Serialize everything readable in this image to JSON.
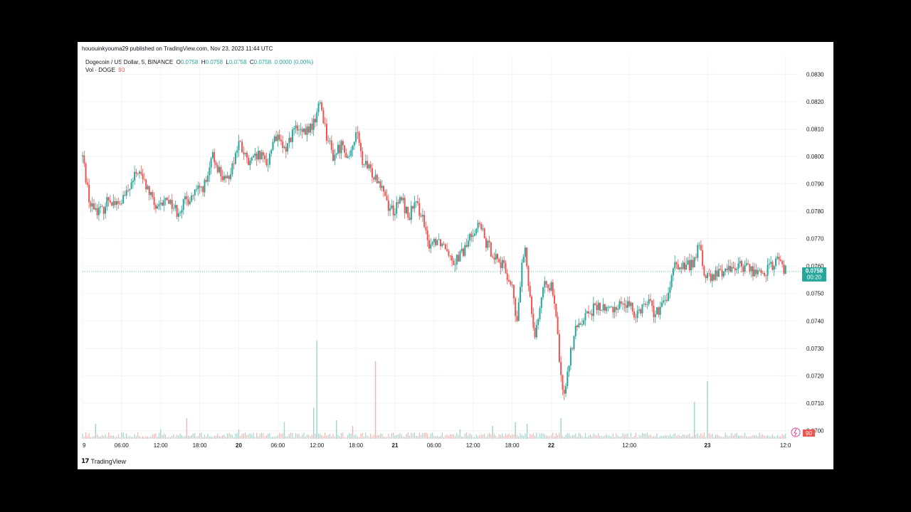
{
  "header": {
    "publish_line": "hououinkyouma29 published on TradingView.com, Nov 23, 2023 11:44 UTC"
  },
  "legend": {
    "symbol": "Dogecoin / US Dollar, 5, BINANCE",
    "o_label": "O",
    "o_value": "0.0758",
    "h_label": "H",
    "h_value": "0.0758",
    "l_label": "L",
    "l_value": "0.0758",
    "c_label": "C",
    "c_value": "0.0758",
    "change": "0.0000 (0.00%)",
    "vol_label": "Vol · DOGE",
    "vol_value": "90"
  },
  "price_badge": {
    "price": "0.0758",
    "countdown": "00:20"
  },
  "vol_badge": "90",
  "footer": {
    "brand": "TradingView"
  },
  "colors": {
    "up": "#26a69a",
    "down": "#ef5350",
    "grid": "#f0f3fa",
    "vol_up": "#9bd6cf",
    "vol_down": "#f5b3b1"
  },
  "chart_data": {
    "type": "candlestick",
    "interval": "5 minute",
    "y_ticks": [
      "0.0830",
      "0.0820",
      "0.0810",
      "0.0800",
      "0.0790",
      "0.0780",
      "0.0770",
      "0.0760",
      "0.0750",
      "0.0740",
      "0.0730",
      "0.0720",
      "0.0710",
      "0.0700"
    ],
    "y_range": [
      0.0697,
      0.0834
    ],
    "x_ticks": [
      {
        "label": "9",
        "t": 0,
        "bold": false
      },
      {
        "label": "06:00",
        "t": 6,
        "bold": false
      },
      {
        "label": "12:00",
        "t": 12,
        "bold": false
      },
      {
        "label": "18:00",
        "t": 18,
        "bold": false
      },
      {
        "label": "20",
        "t": 24,
        "bold": true
      },
      {
        "label": "06:00",
        "t": 30,
        "bold": false
      },
      {
        "label": "12:00",
        "t": 36,
        "bold": false
      },
      {
        "label": "18:00",
        "t": 42,
        "bold": false
      },
      {
        "label": "21",
        "t": 48,
        "bold": true
      },
      {
        "label": "06:00",
        "t": 54,
        "bold": false
      },
      {
        "label": "12:00",
        "t": 60,
        "bold": false
      },
      {
        "label": "18:00",
        "t": 66,
        "bold": false
      },
      {
        "label": "22",
        "t": 72,
        "bold": true
      },
      {
        "label": "12:00",
        "t": 84,
        "bold": false
      },
      {
        "label": "23",
        "t": 96,
        "bold": true
      },
      {
        "label": "12:0",
        "t": 108,
        "bold": false
      }
    ],
    "price_path": [
      [
        0,
        0.08
      ],
      [
        1.2,
        0.0782
      ],
      [
        3,
        0.078
      ],
      [
        4,
        0.0785
      ],
      [
        5.5,
        0.0782
      ],
      [
        7,
        0.0787
      ],
      [
        8.5,
        0.0795
      ],
      [
        10,
        0.0788
      ],
      [
        11.5,
        0.078
      ],
      [
        13,
        0.0785
      ],
      [
        14.5,
        0.078
      ],
      [
        16,
        0.0784
      ],
      [
        18,
        0.0788
      ],
      [
        19,
        0.079
      ],
      [
        20,
        0.08
      ],
      [
        21,
        0.0795
      ],
      [
        22,
        0.079
      ],
      [
        23,
        0.0797
      ],
      [
        24,
        0.0805
      ],
      [
        25.5,
        0.0797
      ],
      [
        27,
        0.08
      ],
      [
        28.5,
        0.0798
      ],
      [
        29.5,
        0.0808
      ],
      [
        31,
        0.0802
      ],
      [
        32.5,
        0.081
      ],
      [
        34,
        0.0808
      ],
      [
        35.5,
        0.0812
      ],
      [
        36.5,
        0.082
      ],
      [
        37.5,
        0.0808
      ],
      [
        38.5,
        0.08
      ],
      [
        40,
        0.0805
      ],
      [
        41,
        0.0798
      ],
      [
        42,
        0.081
      ],
      [
        43,
        0.0798
      ],
      [
        44,
        0.0795
      ],
      [
        45,
        0.0793
      ],
      [
        46,
        0.079
      ],
      [
        47,
        0.0782
      ],
      [
        48,
        0.078
      ],
      [
        49,
        0.0785
      ],
      [
        50,
        0.0778
      ],
      [
        51,
        0.0782
      ],
      [
        52,
        0.078
      ],
      [
        53,
        0.0768
      ],
      [
        54.5,
        0.077
      ],
      [
        56,
        0.0767
      ],
      [
        57,
        0.0762
      ],
      [
        58.5,
        0.0765
      ],
      [
        60,
        0.0773
      ],
      [
        61,
        0.0775
      ],
      [
        62,
        0.0768
      ],
      [
        63,
        0.0765
      ],
      [
        64,
        0.0762
      ],
      [
        65,
        0.0758
      ],
      [
        66,
        0.0752
      ],
      [
        66.7,
        0.0738
      ],
      [
        67.5,
        0.076
      ],
      [
        68,
        0.0765
      ],
      [
        68.8,
        0.0748
      ],
      [
        69.5,
        0.0735
      ],
      [
        70.3,
        0.0746
      ],
      [
        71.3,
        0.0755
      ],
      [
        72,
        0.0752
      ],
      [
        72.7,
        0.0742
      ],
      [
        73.3,
        0.0725
      ],
      [
        73.8,
        0.0712
      ],
      [
        74.5,
        0.0722
      ],
      [
        75.5,
        0.0735
      ],
      [
        77,
        0.0742
      ],
      [
        79,
        0.0745
      ],
      [
        81,
        0.0744
      ],
      [
        83,
        0.0747
      ],
      [
        85,
        0.0743
      ],
      [
        87,
        0.0748
      ],
      [
        88,
        0.0742
      ],
      [
        89,
        0.0745
      ],
      [
        90,
        0.075
      ],
      [
        91,
        0.076
      ],
      [
        93,
        0.076
      ],
      [
        94,
        0.0762
      ],
      [
        94.8,
        0.0768
      ],
      [
        95.5,
        0.0757
      ],
      [
        96.5,
        0.0755
      ],
      [
        98,
        0.0758
      ],
      [
        100,
        0.076
      ],
      [
        102,
        0.076
      ],
      [
        104,
        0.0757
      ],
      [
        106,
        0.076
      ],
      [
        107,
        0.0763
      ],
      [
        108,
        0.0758
      ]
    ],
    "last_price": 0.0758,
    "volume_spikes": [
      {
        "t": 2,
        "v": 0.08
      },
      {
        "t": 12,
        "v": 0.05
      },
      {
        "t": 16,
        "v": 0.11
      },
      {
        "t": 24,
        "v": 0.05
      },
      {
        "t": 31,
        "v": 0.09
      },
      {
        "t": 35.5,
        "v": 0.17
      },
      {
        "t": 36,
        "v": 0.53
      },
      {
        "t": 39,
        "v": 0.1
      },
      {
        "t": 41.5,
        "v": 0.07
      },
      {
        "t": 45,
        "v": 0.42
      },
      {
        "t": 58,
        "v": 0.05
      },
      {
        "t": 63,
        "v": 0.07
      },
      {
        "t": 66.5,
        "v": 0.09
      },
      {
        "t": 68.3,
        "v": 0.08
      },
      {
        "t": 73.5,
        "v": 0.11
      },
      {
        "t": 94,
        "v": 0.2
      },
      {
        "t": 96,
        "v": 0.31
      }
    ]
  }
}
